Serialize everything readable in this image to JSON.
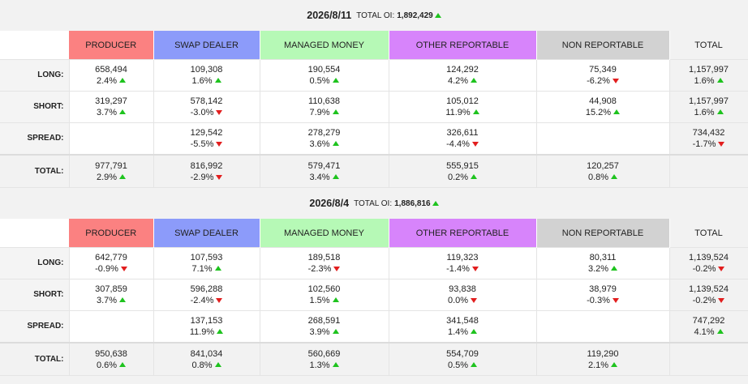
{
  "colors": {
    "producer": "#fb8181",
    "swap_dealer": "#8c9bfa",
    "managed_money": "#b6f9b6",
    "other_reportable": "#d784fb",
    "non_reportable": "#d2d2d2",
    "up": "#1ec31e",
    "down": "#e21e1e"
  },
  "headers": {
    "producer": "PRODUCER",
    "swap_dealer": "SWAP DEALER",
    "managed_money": "MANAGED MONEY",
    "other_reportable": "OTHER REPORTABLE",
    "non_reportable": "NON REPORTABLE",
    "total": "TOTAL"
  },
  "row_labels": {
    "long": "LONG:",
    "short": "SHORT:",
    "spread": "SPREAD:",
    "total": "TOTAL:"
  },
  "blocks": [
    {
      "date": "2026/8/11",
      "oi_label": "TOTAL OI:",
      "oi_value": "1,892,429",
      "oi_dir": "up",
      "rows": {
        "long": [
          {
            "v": "658,494",
            "p": "2.4%",
            "d": "up"
          },
          {
            "v": "109,308",
            "p": "1.6%",
            "d": "up"
          },
          {
            "v": "190,554",
            "p": "0.5%",
            "d": "up"
          },
          {
            "v": "124,292",
            "p": "4.2%",
            "d": "up"
          },
          {
            "v": "75,349",
            "p": "-6.2%",
            "d": "down"
          },
          {
            "v": "1,157,997",
            "p": "1.6%",
            "d": "up"
          }
        ],
        "short": [
          {
            "v": "319,297",
            "p": "3.7%",
            "d": "up"
          },
          {
            "v": "578,142",
            "p": "-3.0%",
            "d": "down"
          },
          {
            "v": "110,638",
            "p": "7.9%",
            "d": "up"
          },
          {
            "v": "105,012",
            "p": "11.9%",
            "d": "up"
          },
          {
            "v": "44,908",
            "p": "15.2%",
            "d": "up"
          },
          {
            "v": "1,157,997",
            "p": "1.6%",
            "d": "up"
          }
        ],
        "spread": [
          {
            "v": "",
            "p": "",
            "d": ""
          },
          {
            "v": "129,542",
            "p": "-5.5%",
            "d": "down"
          },
          {
            "v": "278,279",
            "p": "3.6%",
            "d": "up"
          },
          {
            "v": "326,611",
            "p": "-4.4%",
            "d": "down"
          },
          {
            "v": "",
            "p": "",
            "d": ""
          },
          {
            "v": "734,432",
            "p": "-1.7%",
            "d": "down"
          }
        ],
        "total": [
          {
            "v": "977,791",
            "p": "2.9%",
            "d": "up"
          },
          {
            "v": "816,992",
            "p": "-2.9%",
            "d": "down"
          },
          {
            "v": "579,471",
            "p": "3.4%",
            "d": "up"
          },
          {
            "v": "555,915",
            "p": "0.2%",
            "d": "up"
          },
          {
            "v": "120,257",
            "p": "0.8%",
            "d": "up"
          },
          {
            "v": "",
            "p": "",
            "d": ""
          }
        ]
      }
    },
    {
      "date": "2026/8/4",
      "oi_label": "TOTAL OI:",
      "oi_value": "1,886,816",
      "oi_dir": "up",
      "rows": {
        "long": [
          {
            "v": "642,779",
            "p": "-0.9%",
            "d": "down"
          },
          {
            "v": "107,593",
            "p": "7.1%",
            "d": "up"
          },
          {
            "v": "189,518",
            "p": "-2.3%",
            "d": "down"
          },
          {
            "v": "119,323",
            "p": "-1.4%",
            "d": "down"
          },
          {
            "v": "80,311",
            "p": "3.2%",
            "d": "up"
          },
          {
            "v": "1,139,524",
            "p": "-0.2%",
            "d": "down"
          }
        ],
        "short": [
          {
            "v": "307,859",
            "p": "3.7%",
            "d": "up"
          },
          {
            "v": "596,288",
            "p": "-2.4%",
            "d": "down"
          },
          {
            "v": "102,560",
            "p": "1.5%",
            "d": "up"
          },
          {
            "v": "93,838",
            "p": "0.0%",
            "d": "down"
          },
          {
            "v": "38,979",
            "p": "-0.3%",
            "d": "down"
          },
          {
            "v": "1,139,524",
            "p": "-0.2%",
            "d": "down"
          }
        ],
        "spread": [
          {
            "v": "",
            "p": "",
            "d": ""
          },
          {
            "v": "137,153",
            "p": "11.9%",
            "d": "up"
          },
          {
            "v": "268,591",
            "p": "3.9%",
            "d": "up"
          },
          {
            "v": "341,548",
            "p": "1.4%",
            "d": "up"
          },
          {
            "v": "",
            "p": "",
            "d": ""
          },
          {
            "v": "747,292",
            "p": "4.1%",
            "d": "up"
          }
        ],
        "total": [
          {
            "v": "950,638",
            "p": "0.6%",
            "d": "up"
          },
          {
            "v": "841,034",
            "p": "0.8%",
            "d": "up"
          },
          {
            "v": "560,669",
            "p": "1.3%",
            "d": "up"
          },
          {
            "v": "554,709",
            "p": "0.5%",
            "d": "up"
          },
          {
            "v": "119,290",
            "p": "2.1%",
            "d": "up"
          },
          {
            "v": "",
            "p": "",
            "d": ""
          }
        ]
      }
    }
  ]
}
